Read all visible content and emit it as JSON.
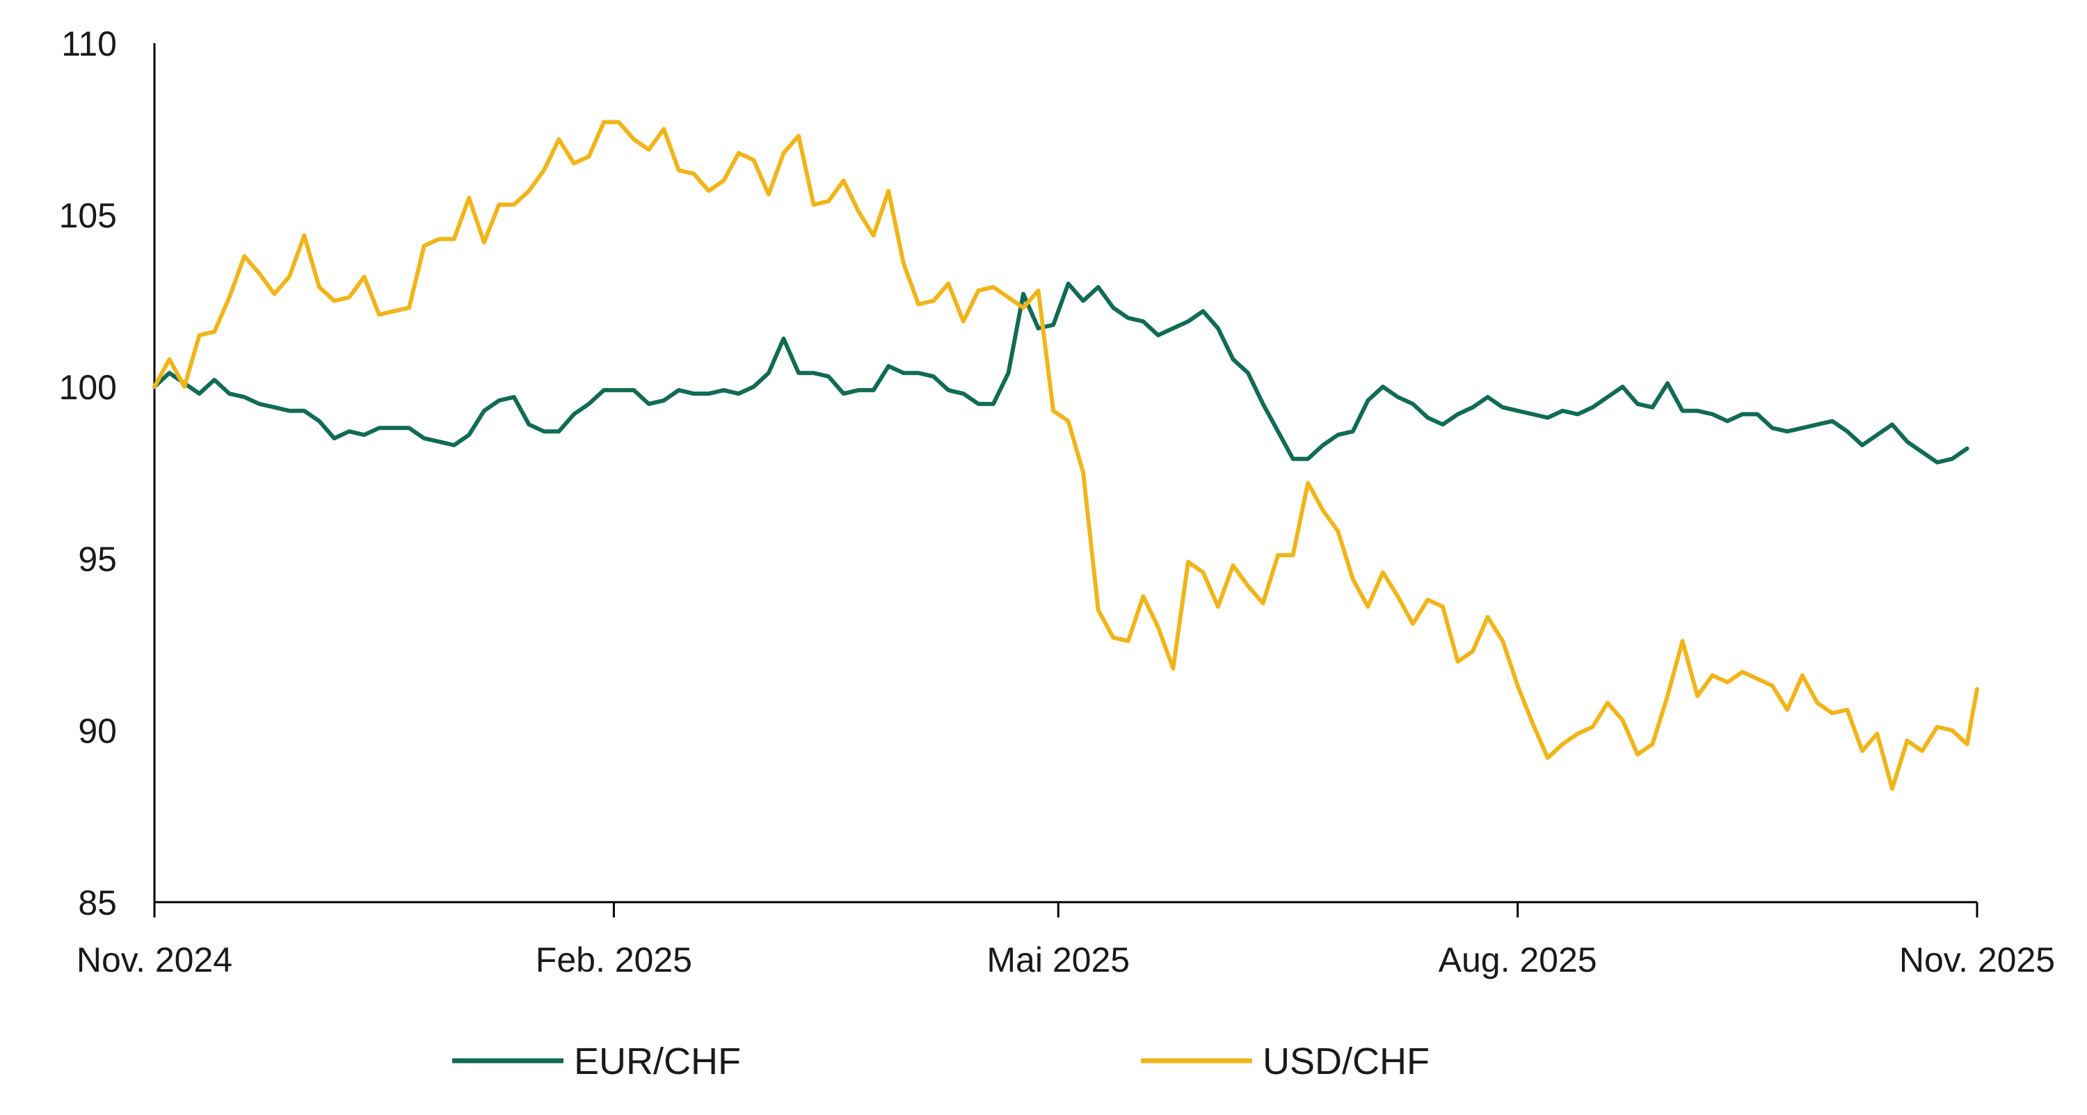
{
  "chart_data": {
    "type": "line",
    "title": "",
    "xlabel": "",
    "ylabel": "",
    "ylim": [
      85,
      110
    ],
    "yticks": [
      85,
      90,
      95,
      100,
      105,
      110
    ],
    "xlim": [
      "2024-11-01",
      "2025-11-01"
    ],
    "xticks": [
      {
        "date": "2024-11-01",
        "label": "Nov. 2024"
      },
      {
        "date": "2025-02-01",
        "label": "Feb. 2025"
      },
      {
        "date": "2025-05-01",
        "label": "Mai 2025"
      },
      {
        "date": "2025-08-01",
        "label": "Aug. 2025"
      },
      {
        "date": "2025-11-01",
        "label": "Nov. 2025"
      }
    ],
    "grid": false,
    "legend_position": "bottom",
    "series": [
      {
        "name": "EUR/CHF",
        "color": "#126b55",
        "points": [
          [
            "2024-11-01",
            100.0
          ],
          [
            "2024-11-04",
            100.4
          ],
          [
            "2024-11-07",
            100.1
          ],
          [
            "2024-11-10",
            99.8
          ],
          [
            "2024-11-13",
            100.2
          ],
          [
            "2024-11-16",
            99.8
          ],
          [
            "2024-11-19",
            99.7
          ],
          [
            "2024-11-22",
            99.5
          ],
          [
            "2024-11-25",
            99.4
          ],
          [
            "2024-11-28",
            99.3
          ],
          [
            "2024-12-01",
            99.3
          ],
          [
            "2024-12-04",
            99.0
          ],
          [
            "2024-12-07",
            98.5
          ],
          [
            "2024-12-10",
            98.7
          ],
          [
            "2024-12-13",
            98.6
          ],
          [
            "2024-12-16",
            98.8
          ],
          [
            "2024-12-19",
            98.8
          ],
          [
            "2024-12-22",
            98.8
          ],
          [
            "2024-12-25",
            98.5
          ],
          [
            "2024-12-28",
            98.4
          ],
          [
            "2024-12-31",
            98.3
          ],
          [
            "2025-01-03",
            98.6
          ],
          [
            "2025-01-06",
            99.3
          ],
          [
            "2025-01-09",
            99.6
          ],
          [
            "2025-01-12",
            99.7
          ],
          [
            "2025-01-15",
            98.9
          ],
          [
            "2025-01-18",
            98.7
          ],
          [
            "2025-01-21",
            98.7
          ],
          [
            "2025-01-24",
            99.2
          ],
          [
            "2025-01-27",
            99.5
          ],
          [
            "2025-01-30",
            99.9
          ],
          [
            "2025-02-02",
            99.9
          ],
          [
            "2025-02-05",
            99.9
          ],
          [
            "2025-02-08",
            99.5
          ],
          [
            "2025-02-11",
            99.6
          ],
          [
            "2025-02-14",
            99.9
          ],
          [
            "2025-02-17",
            99.8
          ],
          [
            "2025-02-20",
            99.8
          ],
          [
            "2025-02-23",
            99.9
          ],
          [
            "2025-02-26",
            99.8
          ],
          [
            "2025-03-01",
            100.0
          ],
          [
            "2025-03-04",
            100.4
          ],
          [
            "2025-03-07",
            101.4
          ],
          [
            "2025-03-10",
            100.4
          ],
          [
            "2025-03-13",
            100.4
          ],
          [
            "2025-03-16",
            100.3
          ],
          [
            "2025-03-19",
            99.8
          ],
          [
            "2025-03-22",
            99.9
          ],
          [
            "2025-03-25",
            99.9
          ],
          [
            "2025-03-28",
            100.6
          ],
          [
            "2025-03-31",
            100.4
          ],
          [
            "2025-04-03",
            100.4
          ],
          [
            "2025-04-06",
            100.3
          ],
          [
            "2025-04-09",
            99.9
          ],
          [
            "2025-04-12",
            99.8
          ],
          [
            "2025-04-15",
            99.5
          ],
          [
            "2025-04-18",
            99.5
          ],
          [
            "2025-04-21",
            100.4
          ],
          [
            "2025-04-24",
            102.7
          ],
          [
            "2025-04-27",
            101.7
          ],
          [
            "2025-04-30",
            101.8
          ],
          [
            "2025-05-03",
            103.0
          ],
          [
            "2025-05-06",
            102.5
          ],
          [
            "2025-05-09",
            102.9
          ],
          [
            "2025-05-12",
            102.3
          ],
          [
            "2025-05-15",
            102.0
          ],
          [
            "2025-05-18",
            101.9
          ],
          [
            "2025-05-21",
            101.5
          ],
          [
            "2025-05-24",
            101.7
          ],
          [
            "2025-05-27",
            101.9
          ],
          [
            "2025-05-30",
            102.2
          ],
          [
            "2025-06-02",
            101.7
          ],
          [
            "2025-06-05",
            100.8
          ],
          [
            "2025-06-08",
            100.4
          ],
          [
            "2025-06-11",
            99.5
          ],
          [
            "2025-06-14",
            98.7
          ],
          [
            "2025-06-17",
            97.9
          ],
          [
            "2025-06-20",
            97.9
          ],
          [
            "2025-06-23",
            98.3
          ],
          [
            "2025-06-26",
            98.6
          ],
          [
            "2025-06-29",
            98.7
          ],
          [
            "2025-07-02",
            99.6
          ],
          [
            "2025-07-05",
            100.0
          ],
          [
            "2025-07-08",
            99.7
          ],
          [
            "2025-07-11",
            99.5
          ],
          [
            "2025-07-14",
            99.1
          ],
          [
            "2025-07-17",
            98.9
          ],
          [
            "2025-07-20",
            99.2
          ],
          [
            "2025-07-23",
            99.4
          ],
          [
            "2025-07-26",
            99.7
          ],
          [
            "2025-07-29",
            99.4
          ],
          [
            "2025-08-01",
            99.3
          ],
          [
            "2025-08-04",
            99.2
          ],
          [
            "2025-08-07",
            99.1
          ],
          [
            "2025-08-10",
            99.3
          ],
          [
            "2025-08-13",
            99.2
          ],
          [
            "2025-08-16",
            99.4
          ],
          [
            "2025-08-19",
            99.7
          ],
          [
            "2025-08-22",
            100.0
          ],
          [
            "2025-08-25",
            99.5
          ],
          [
            "2025-08-28",
            99.4
          ],
          [
            "2025-08-31",
            100.1
          ],
          [
            "2025-09-03",
            99.3
          ],
          [
            "2025-09-06",
            99.3
          ],
          [
            "2025-09-09",
            99.2
          ],
          [
            "2025-09-12",
            99.0
          ],
          [
            "2025-09-15",
            99.2
          ],
          [
            "2025-09-18",
            99.2
          ],
          [
            "2025-09-21",
            98.8
          ],
          [
            "2025-09-24",
            98.7
          ],
          [
            "2025-09-27",
            98.8
          ],
          [
            "2025-09-30",
            98.9
          ],
          [
            "2025-10-03",
            99.0
          ],
          [
            "2025-10-06",
            98.7
          ],
          [
            "2025-10-09",
            98.3
          ],
          [
            "2025-10-12",
            98.6
          ],
          [
            "2025-10-15",
            98.9
          ],
          [
            "2025-10-18",
            98.4
          ],
          [
            "2025-10-21",
            98.1
          ],
          [
            "2025-10-24",
            97.8
          ],
          [
            "2025-10-27",
            97.9
          ],
          [
            "2025-10-30",
            98.2
          ]
        ]
      },
      {
        "name": "USD/CHF",
        "color": "#f0b51a",
        "points": [
          [
            "2024-11-01",
            100.0
          ],
          [
            "2024-11-04",
            100.8
          ],
          [
            "2024-11-07",
            100.0
          ],
          [
            "2024-11-10",
            101.5
          ],
          [
            "2024-11-13",
            101.6
          ],
          [
            "2024-11-16",
            102.6
          ],
          [
            "2024-11-19",
            103.8
          ],
          [
            "2024-11-22",
            103.3
          ],
          [
            "2024-11-25",
            102.7
          ],
          [
            "2024-11-28",
            103.2
          ],
          [
            "2024-12-01",
            104.4
          ],
          [
            "2024-12-04",
            102.9
          ],
          [
            "2024-12-07",
            102.5
          ],
          [
            "2024-12-10",
            102.6
          ],
          [
            "2024-12-13",
            103.2
          ],
          [
            "2024-12-16",
            102.1
          ],
          [
            "2024-12-19",
            102.2
          ],
          [
            "2024-12-22",
            102.3
          ],
          [
            "2024-12-25",
            104.1
          ],
          [
            "2024-12-28",
            104.3
          ],
          [
            "2024-12-31",
            104.3
          ],
          [
            "2025-01-03",
            105.5
          ],
          [
            "2025-01-06",
            104.2
          ],
          [
            "2025-01-09",
            105.3
          ],
          [
            "2025-01-12",
            105.3
          ],
          [
            "2025-01-15",
            105.7
          ],
          [
            "2025-01-18",
            106.3
          ],
          [
            "2025-01-21",
            107.2
          ],
          [
            "2025-01-24",
            106.5
          ],
          [
            "2025-01-27",
            106.7
          ],
          [
            "2025-01-30",
            107.7
          ],
          [
            "2025-02-02",
            107.7
          ],
          [
            "2025-02-05",
            107.2
          ],
          [
            "2025-02-08",
            106.9
          ],
          [
            "2025-02-11",
            107.5
          ],
          [
            "2025-02-14",
            106.3
          ],
          [
            "2025-02-17",
            106.2
          ],
          [
            "2025-02-20",
            105.7
          ],
          [
            "2025-02-23",
            106.0
          ],
          [
            "2025-02-26",
            106.8
          ],
          [
            "2025-03-01",
            106.6
          ],
          [
            "2025-03-04",
            105.6
          ],
          [
            "2025-03-07",
            106.8
          ],
          [
            "2025-03-10",
            107.3
          ],
          [
            "2025-03-13",
            105.3
          ],
          [
            "2025-03-16",
            105.4
          ],
          [
            "2025-03-19",
            106.0
          ],
          [
            "2025-03-22",
            105.1
          ],
          [
            "2025-03-25",
            104.4
          ],
          [
            "2025-03-28",
            105.7
          ],
          [
            "2025-03-31",
            103.6
          ],
          [
            "2025-04-03",
            102.4
          ],
          [
            "2025-04-06",
            102.5
          ],
          [
            "2025-04-09",
            103.0
          ],
          [
            "2025-04-12",
            101.9
          ],
          [
            "2025-04-15",
            102.8
          ],
          [
            "2025-04-18",
            102.9
          ],
          [
            "2025-04-21",
            102.6
          ],
          [
            "2025-04-24",
            102.3
          ],
          [
            "2025-04-27",
            102.8
          ],
          [
            "2025-04-30",
            99.3
          ],
          [
            "2025-05-03",
            99.0
          ],
          [
            "2025-05-06",
            97.5
          ],
          [
            "2025-05-09",
            93.5
          ],
          [
            "2025-05-12",
            92.7
          ],
          [
            "2025-05-15",
            92.6
          ],
          [
            "2025-05-18",
            93.9
          ],
          [
            "2025-05-21",
            93.0
          ],
          [
            "2025-05-24",
            91.8
          ],
          [
            "2025-05-27",
            94.9
          ],
          [
            "2025-05-30",
            94.6
          ],
          [
            "2025-06-02",
            93.6
          ],
          [
            "2025-06-05",
            94.8
          ],
          [
            "2025-06-08",
            94.2
          ],
          [
            "2025-06-11",
            93.7
          ],
          [
            "2025-06-14",
            95.1
          ],
          [
            "2025-06-17",
            95.1
          ],
          [
            "2025-06-20",
            97.2
          ],
          [
            "2025-06-23",
            96.4
          ],
          [
            "2025-06-26",
            95.8
          ],
          [
            "2025-06-29",
            94.4
          ],
          [
            "2025-07-02",
            93.6
          ],
          [
            "2025-07-05",
            94.6
          ],
          [
            "2025-07-08",
            93.9
          ],
          [
            "2025-07-11",
            93.1
          ],
          [
            "2025-07-14",
            93.8
          ],
          [
            "2025-07-17",
            93.6
          ],
          [
            "2025-07-20",
            92.0
          ],
          [
            "2025-07-23",
            92.3
          ],
          [
            "2025-07-26",
            93.3
          ],
          [
            "2025-07-29",
            92.6
          ],
          [
            "2025-08-01",
            91.3
          ],
          [
            "2025-08-04",
            90.2
          ],
          [
            "2025-08-07",
            89.2
          ],
          [
            "2025-08-10",
            89.6
          ],
          [
            "2025-08-13",
            89.9
          ],
          [
            "2025-08-16",
            90.1
          ],
          [
            "2025-08-19",
            90.8
          ],
          [
            "2025-08-22",
            90.3
          ],
          [
            "2025-08-25",
            89.3
          ],
          [
            "2025-08-28",
            89.6
          ],
          [
            "2025-08-31",
            91.0
          ],
          [
            "2025-09-03",
            92.6
          ],
          [
            "2025-09-06",
            91.0
          ],
          [
            "2025-09-09",
            91.6
          ],
          [
            "2025-09-12",
            91.4
          ],
          [
            "2025-09-15",
            91.7
          ],
          [
            "2025-09-18",
            91.5
          ],
          [
            "2025-09-21",
            91.3
          ],
          [
            "2025-09-24",
            90.6
          ],
          [
            "2025-09-27",
            91.6
          ],
          [
            "2025-09-30",
            90.8
          ],
          [
            "2025-10-03",
            90.5
          ],
          [
            "2025-10-06",
            90.6
          ],
          [
            "2025-10-09",
            89.4
          ],
          [
            "2025-10-12",
            89.9
          ],
          [
            "2025-10-15",
            88.3
          ],
          [
            "2025-10-18",
            89.7
          ],
          [
            "2025-10-21",
            89.4
          ],
          [
            "2025-10-24",
            90.1
          ],
          [
            "2025-10-27",
            90.0
          ],
          [
            "2025-10-30",
            89.6
          ],
          [
            "2025-11-01",
            91.2
          ]
        ]
      }
    ]
  }
}
